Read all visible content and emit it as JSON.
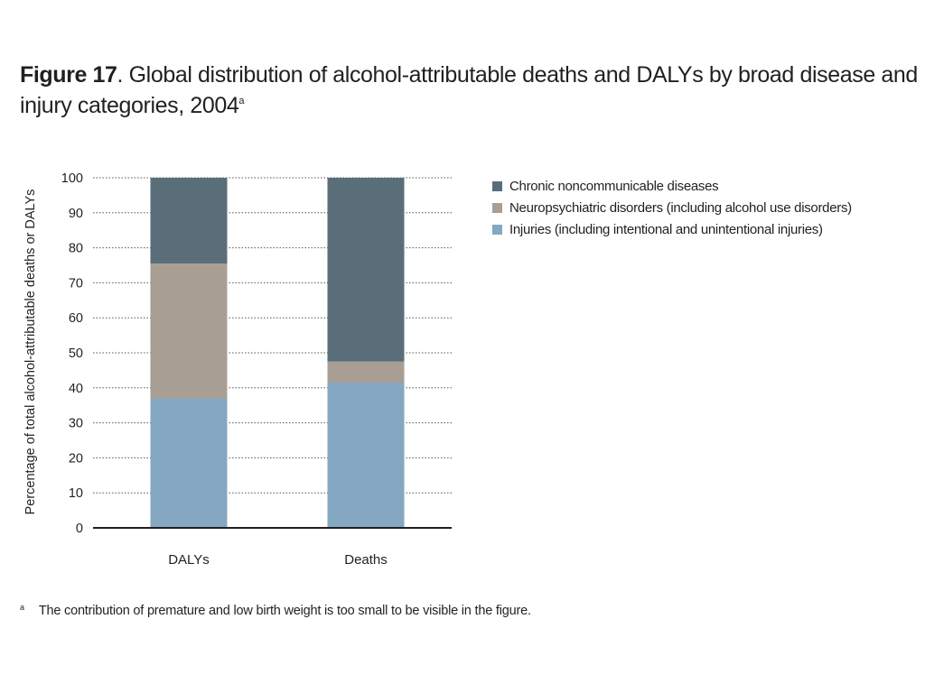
{
  "title": {
    "label": "Figure 17",
    "text": ". Global distribution of alcohol-attributable deaths and DALYs by broad disease and injury categories, 2004",
    "superscript": "a"
  },
  "footnote": {
    "marker": "a",
    "text": "The contribution of premature and low birth weight is too small to be visible in the figure."
  },
  "colors": {
    "chronic": "#5a6e7a",
    "neuro": "#a89e93",
    "injuries": "#84a7c2",
    "axis": "#231f20",
    "grid": "#555555"
  },
  "chart_data": {
    "type": "bar",
    "stacked": true,
    "categories": [
      "DALYs",
      "Deaths"
    ],
    "ylabel": "Percentage of total alcohol-attributable deaths or DALYs",
    "xlabel": "",
    "ylim": [
      0,
      100
    ],
    "yticks": [
      0,
      10,
      20,
      30,
      40,
      50,
      60,
      70,
      80,
      90,
      100
    ],
    "grid": true,
    "legend_position": "right",
    "series": [
      {
        "name": "Injuries (including intentional and unintentional injuries)",
        "key": "injuries",
        "values": [
          37,
          41.5
        ]
      },
      {
        "name": "Neuropsychiatric disorders (including alcohol use disorders)",
        "key": "neuro",
        "values": [
          38.5,
          6
        ]
      },
      {
        "name": "Chronic noncommunicable diseases",
        "key": "chronic",
        "values": [
          24.5,
          52.5
        ]
      }
    ],
    "legend_order": [
      "chronic",
      "neuro",
      "injuries"
    ]
  }
}
